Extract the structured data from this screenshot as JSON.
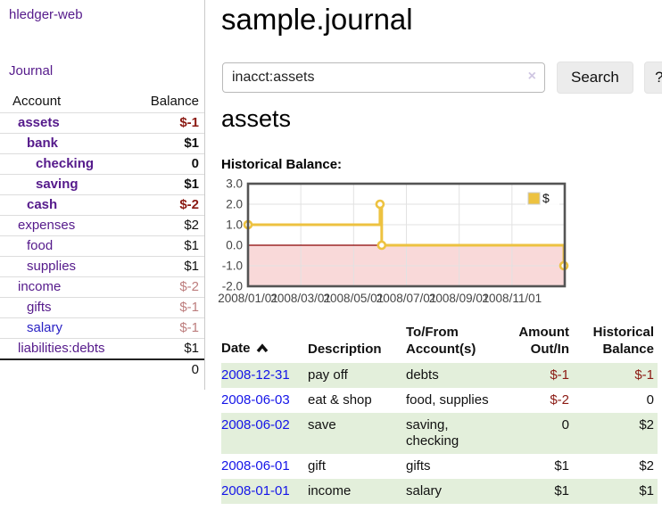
{
  "app": {
    "brand": "hledger-web",
    "nav_journal": "Journal"
  },
  "colors": {
    "link_purple": "#551a8b",
    "link_blue": "#2a22c4",
    "date_blue": "#1414e8",
    "negative_strong": "#8b1a13",
    "negative_soft": "#bd7d7d",
    "row_green": "#e3efdb",
    "chart_gold": "#edc240",
    "chart_negative_fill": "#f9d9d9",
    "chart_zero_line": "#8b0000"
  },
  "sidebar": {
    "header": {
      "account": "Account",
      "balance": "Balance"
    },
    "accounts": [
      {
        "name": "assets",
        "indent": 0,
        "bold": true,
        "name_color": "purple",
        "balance": "$-1",
        "balance_style": "neg-strong"
      },
      {
        "name": "bank",
        "indent": 1,
        "bold": true,
        "name_color": "purple",
        "balance": "$1",
        "balance_style": ""
      },
      {
        "name": "checking",
        "indent": 2,
        "bold": true,
        "name_color": "purple",
        "balance": "0",
        "balance_style": ""
      },
      {
        "name": "saving",
        "indent": 2,
        "bold": true,
        "name_color": "purple",
        "balance": "$1",
        "balance_style": ""
      },
      {
        "name": "cash",
        "indent": 1,
        "bold": true,
        "name_color": "purple",
        "balance": "$-2",
        "balance_style": "neg-strong"
      },
      {
        "name": "expenses",
        "indent": 0,
        "bold": false,
        "name_color": "purple",
        "balance": "$2",
        "balance_style": ""
      },
      {
        "name": "food",
        "indent": 1,
        "bold": false,
        "name_color": "purple",
        "balance": "$1",
        "balance_style": ""
      },
      {
        "name": "supplies",
        "indent": 1,
        "bold": false,
        "name_color": "purple",
        "balance": "$1",
        "balance_style": ""
      },
      {
        "name": "income",
        "indent": 0,
        "bold": false,
        "name_color": "purple",
        "balance": "$-2",
        "balance_style": "neg-soft"
      },
      {
        "name": "gifts",
        "indent": 1,
        "bold": false,
        "name_color": "purple",
        "balance": "$-1",
        "balance_style": "neg-soft"
      },
      {
        "name": "salary",
        "indent": 1,
        "bold": false,
        "name_color": "blue",
        "balance": "$-1",
        "balance_style": "neg-soft"
      },
      {
        "name": "liabilities:debts",
        "indent": 0,
        "bold": false,
        "name_color": "purple",
        "balance": "$1",
        "balance_style": ""
      }
    ],
    "total": "0"
  },
  "header": {
    "title": "sample.journal"
  },
  "search": {
    "value": "inacct:assets",
    "clear_icon": "×",
    "button_label": "Search",
    "help_label": "?"
  },
  "main": {
    "account_title": "assets",
    "section_label": "Historical Balance:"
  },
  "chart_data": {
    "type": "line",
    "title": "Historical Balance",
    "legend": "$",
    "legend_position": "top-right",
    "series": [
      {
        "name": "$",
        "color": "#edc240",
        "points": [
          [
            "2008-01-01",
            1
          ],
          [
            "2008-06-01",
            2
          ],
          [
            "2008-06-03",
            0
          ],
          [
            "2008-12-31",
            -1
          ]
        ]
      }
    ],
    "step": true,
    "x_ticks": [
      "2008/01/01",
      "2008/03/01",
      "2008/05/01",
      "2008/07/01",
      "2008/09/01",
      "2008/11/01"
    ],
    "y_ticks": [
      3.0,
      2.0,
      1.0,
      0.0,
      -1.0,
      -2.0
    ],
    "ylim": [
      -2,
      3
    ],
    "xlim": [
      "2008-01-01",
      "2008-12-31"
    ],
    "grid": true
  },
  "register": {
    "columns": [
      {
        "label": "Date",
        "label2": "",
        "sorted": "asc"
      },
      {
        "label": "Description",
        "label2": ""
      },
      {
        "label": "To/From",
        "label2": "Account(s)"
      },
      {
        "label": "Amount",
        "label2": "Out/In",
        "align": "right"
      },
      {
        "label": "Historical",
        "label2": "Balance",
        "align": "right"
      }
    ],
    "rows": [
      {
        "date": "2008-12-31",
        "description": "pay off",
        "accounts": "debts",
        "amount": "$-1",
        "amount_style": "neg-strong",
        "balance": "$-1",
        "balance_style": "neg-strong",
        "zebra": true
      },
      {
        "date": "2008-06-03",
        "description": "eat & shop",
        "accounts": "food, supplies",
        "amount": "$-2",
        "amount_style": "neg-strong",
        "balance": "0",
        "balance_style": "",
        "zebra": false
      },
      {
        "date": "2008-06-02",
        "description": "save",
        "accounts": "saving, checking",
        "amount": "0",
        "amount_style": "",
        "balance": "$2",
        "balance_style": "",
        "zebra": true
      },
      {
        "date": "2008-06-01",
        "description": "gift",
        "accounts": "gifts",
        "amount": "$1",
        "amount_style": "",
        "balance": "$2",
        "balance_style": "",
        "zebra": false
      },
      {
        "date": "2008-01-01",
        "description": "income",
        "accounts": "salary",
        "amount": "$1",
        "amount_style": "",
        "balance": "$1",
        "balance_style": "",
        "zebra": true
      }
    ]
  }
}
